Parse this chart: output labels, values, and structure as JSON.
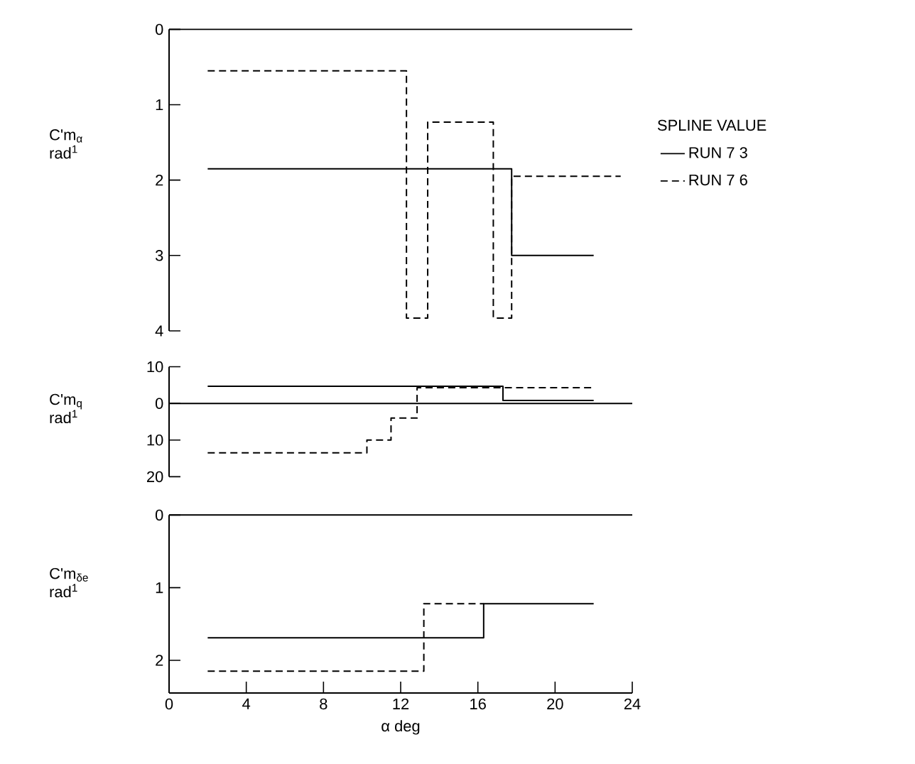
{
  "chart_data": [
    {
      "type": "step",
      "ylabel": "C'm$_{α}$ rad$^{1}$",
      "legend_title": "SPLINE VALUE",
      "legend": "right",
      "marker": "none",
      "tick_labels": "y",
      "xlim": [
        0,
        24
      ],
      "ylim": [
        -4,
        0
      ],
      "yticks": [
        0,
        {
          "value": -1,
          "label": "1"
        },
        {
          "value": -2,
          "label": "2"
        },
        {
          "value": -3,
          "label": "3"
        },
        {
          "value": -4,
          "label": "4"
        }
      ],
      "ref_lines": [
        {
          "axis": "y",
          "value": 0,
          "color": "#000000"
        }
      ],
      "series": [
        {
          "name": "RUN 7 3",
          "color": "#000000",
          "line_style": "solid",
          "x": [
            2,
            17.75,
            22
          ],
          "values": [
            -1.85,
            -3.0,
            -3.0
          ]
        },
        {
          "name": "RUN 7 6",
          "color": "#000000",
          "line_style": "dashed",
          "x": [
            2,
            12.3,
            13.4,
            16.8,
            17.75,
            23.4
          ],
          "values": [
            -0.55,
            -3.83,
            -1.23,
            -3.83,
            -1.95,
            -1.95
          ]
        }
      ]
    },
    {
      "type": "step",
      "ylabel": "C'm$_{q}$ rad$^{1}$",
      "marker": "none",
      "tick_labels": "y",
      "xlim": [
        0,
        24
      ],
      "ylim": [
        -20,
        10
      ],
      "yticks": [
        10,
        0,
        {
          "value": -10,
          "label": "10"
        },
        {
          "value": -20,
          "label": "20"
        }
      ],
      "ref_lines": [
        {
          "axis": "y",
          "value": 0,
          "color": "#000000"
        }
      ],
      "series": [
        {
          "color": "#000000",
          "line_style": "solid",
          "x": [
            2,
            17.3,
            22
          ],
          "values": [
            4.7,
            0.8,
            0.8
          ]
        },
        {
          "color": "#000000",
          "line_style": "dashed",
          "x": [
            2,
            10.25,
            11.5,
            12.85,
            22
          ],
          "values": [
            -13.5,
            -10,
            -4,
            4.3,
            4.3
          ]
        }
      ]
    },
    {
      "type": "step",
      "ylabel": "C'm$_{δe}$ rad$^{1}$",
      "xlabel": "α deg",
      "marker": "none",
      "xlim": [
        0,
        24
      ],
      "ylim": [
        -2.45,
        0
      ],
      "xticks": [
        0,
        4,
        8,
        12,
        16,
        20,
        24
      ],
      "yticks": [
        0,
        {
          "value": -1,
          "label": "1"
        },
        {
          "value": -2,
          "label": "2"
        }
      ],
      "ref_lines": [
        {
          "axis": "y",
          "value": 0,
          "color": "#000000"
        }
      ],
      "series": [
        {
          "color": "#000000",
          "line_style": "solid",
          "x": [
            2,
            16.3,
            22
          ],
          "values": [
            -1.69,
            -1.22,
            -1.22
          ]
        },
        {
          "color": "#000000",
          "line_style": "dashed",
          "x": [
            2,
            13.2,
            16.3
          ],
          "values": [
            -2.15,
            -1.22,
            -1.22
          ]
        }
      ]
    }
  ]
}
